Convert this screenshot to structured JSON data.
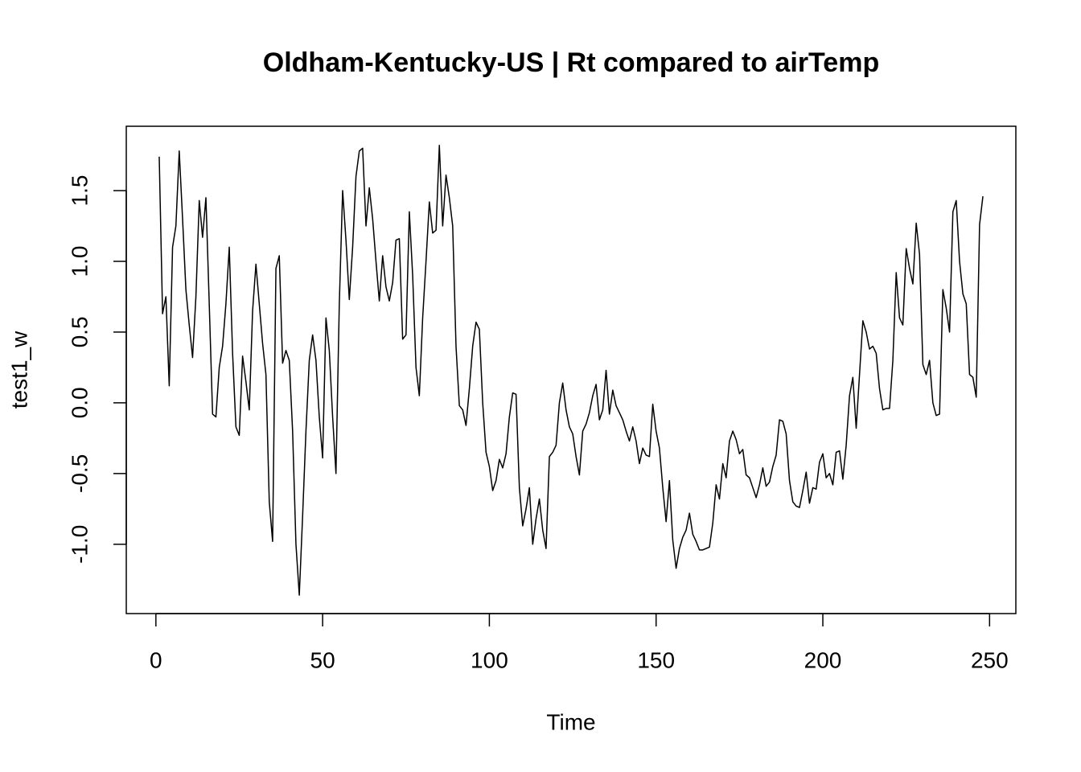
{
  "chart_data": {
    "type": "line",
    "title": "Oldham-Kentucky-US | Rt compared to airTemp",
    "xlabel": "Time",
    "ylabel": "test1_w",
    "color": "#000000",
    "xlim": [
      -8.88,
      257.88
    ],
    "ylim": [
      -1.49,
      1.955
    ],
    "xticks": [
      0,
      50,
      100,
      150,
      200,
      250
    ],
    "yticks": [
      {
        "value": -1.0,
        "label": "-1.0"
      },
      -0.5,
      {
        "value": 0.0,
        "label": "0.0"
      },
      0.5,
      {
        "value": 1.0,
        "label": "1.0"
      },
      1.5
    ],
    "x": [
      1,
      2,
      3,
      4,
      5,
      6,
      7,
      8,
      9,
      10,
      11,
      12,
      13,
      14,
      15,
      16,
      17,
      18,
      19,
      20,
      21,
      22,
      23,
      24,
      25,
      26,
      27,
      28,
      29,
      30,
      31,
      32,
      33,
      34,
      35,
      36,
      37,
      38,
      39,
      40,
      41,
      42,
      43,
      44,
      45,
      46,
      47,
      48,
      49,
      50,
      51,
      52,
      53,
      54,
      55,
      56,
      57,
      58,
      59,
      60,
      61,
      62,
      63,
      64,
      65,
      66,
      67,
      68,
      69,
      70,
      71,
      72,
      73,
      74,
      75,
      76,
      77,
      78,
      79,
      80,
      81,
      82,
      83,
      84,
      85,
      86,
      87,
      88,
      89,
      90,
      91,
      92,
      93,
      94,
      95,
      96,
      97,
      98,
      99,
      100,
      101,
      102,
      103,
      104,
      105,
      106,
      107,
      108,
      109,
      110,
      111,
      112,
      113,
      114,
      115,
      116,
      117,
      118,
      119,
      120,
      121,
      122,
      123,
      124,
      125,
      126,
      127,
      128,
      129,
      130,
      131,
      132,
      133,
      134,
      135,
      136,
      137,
      138,
      139,
      140,
      141,
      142,
      143,
      144,
      145,
      146,
      147,
      148,
      149,
      150,
      151,
      152,
      153,
      154,
      155,
      156,
      157,
      158,
      159,
      160,
      161,
      162,
      163,
      164,
      165,
      166,
      167,
      168,
      169,
      170,
      171,
      172,
      173,
      174,
      175,
      176,
      177,
      178,
      179,
      180,
      181,
      182,
      183,
      184,
      185,
      186,
      187,
      188,
      189,
      190,
      191,
      192,
      193,
      194,
      195,
      196,
      197,
      198,
      199,
      200,
      201,
      202,
      203,
      204,
      205,
      206,
      207,
      208,
      209,
      210,
      211,
      212,
      213,
      214,
      215,
      216,
      217,
      218,
      219,
      220,
      221,
      222,
      223,
      224,
      225,
      226,
      227,
      228,
      229,
      230,
      231,
      232,
      233,
      234,
      235,
      236,
      237,
      238,
      239,
      240,
      241,
      242,
      243,
      244,
      245,
      246,
      247,
      248
    ],
    "values": [
      1.74,
      0.63,
      0.75,
      0.12,
      1.1,
      1.25,
      1.78,
      1.3,
      0.8,
      0.55,
      0.32,
      0.75,
      1.43,
      1.17,
      1.45,
      0.7,
      -0.08,
      -0.1,
      0.25,
      0.4,
      0.7,
      1.1,
      0.35,
      -0.17,
      -0.23,
      0.33,
      0.15,
      -0.05,
      0.65,
      0.98,
      0.7,
      0.42,
      0.2,
      -0.7,
      -0.98,
      0.95,
      1.04,
      0.28,
      0.37,
      0.3,
      -0.2,
      -1.0,
      -1.36,
      -0.8,
      -0.2,
      0.3,
      0.48,
      0.3,
      -0.1,
      -0.39,
      0.6,
      0.37,
      -0.1,
      -0.5,
      0.7,
      1.5,
      1.15,
      0.73,
      1.1,
      1.6,
      1.78,
      1.8,
      1.25,
      1.52,
      1.3,
      1.0,
      0.72,
      1.04,
      0.82,
      0.72,
      0.85,
      1.15,
      1.16,
      0.45,
      0.48,
      1.35,
      0.9,
      0.25,
      0.05,
      0.6,
      1.0,
      1.42,
      1.2,
      1.22,
      1.82,
      1.25,
      1.61,
      1.45,
      1.25,
      0.4,
      -0.02,
      -0.05,
      -0.16,
      0.1,
      0.4,
      0.57,
      0.52,
      0.0,
      -0.35,
      -0.45,
      -0.62,
      -0.55,
      -0.4,
      -0.46,
      -0.36,
      -0.1,
      0.07,
      0.06,
      -0.6,
      -0.87,
      -0.75,
      -0.6,
      -1.0,
      -0.82,
      -0.68,
      -0.9,
      -1.03,
      -0.38,
      -0.35,
      -0.3,
      0.0,
      0.14,
      -0.05,
      -0.17,
      -0.22,
      -0.38,
      -0.51,
      -0.2,
      -0.15,
      -0.07,
      0.05,
      0.13,
      -0.12,
      -0.05,
      0.23,
      -0.08,
      0.09,
      -0.02,
      -0.07,
      -0.12,
      -0.2,
      -0.27,
      -0.17,
      -0.27,
      -0.43,
      -0.32,
      -0.37,
      -0.38,
      -0.01,
      -0.2,
      -0.32,
      -0.6,
      -0.84,
      -0.55,
      -0.97,
      -1.17,
      -1.03,
      -0.95,
      -0.9,
      -0.78,
      -0.93,
      -0.98,
      -1.04,
      -1.04,
      -1.03,
      -1.02,
      -0.85,
      -0.58,
      -0.68,
      -0.43,
      -0.53,
      -0.27,
      -0.2,
      -0.26,
      -0.36,
      -0.33,
      -0.51,
      -0.53,
      -0.6,
      -0.67,
      -0.58,
      -0.46,
      -0.59,
      -0.56,
      -0.45,
      -0.37,
      -0.12,
      -0.13,
      -0.22,
      -0.55,
      -0.7,
      -0.73,
      -0.74,
      -0.62,
      -0.49,
      -0.71,
      -0.6,
      -0.61,
      -0.42,
      -0.36,
      -0.53,
      -0.5,
      -0.58,
      -0.35,
      -0.34,
      -0.54,
      -0.3,
      0.05,
      0.18,
      -0.18,
      0.2,
      0.58,
      0.5,
      0.38,
      0.4,
      0.35,
      0.1,
      -0.05,
      -0.04,
      -0.04,
      0.3,
      0.92,
      0.6,
      0.55,
      1.09,
      0.95,
      0.84,
      1.27,
      1.05,
      0.27,
      0.2,
      0.3,
      0.0,
      -0.09,
      -0.08,
      0.8,
      0.67,
      0.5,
      1.35,
      1.43,
      1.0,
      0.77,
      0.7,
      0.2,
      0.18,
      0.04,
      1.26,
      1.46
    ]
  }
}
